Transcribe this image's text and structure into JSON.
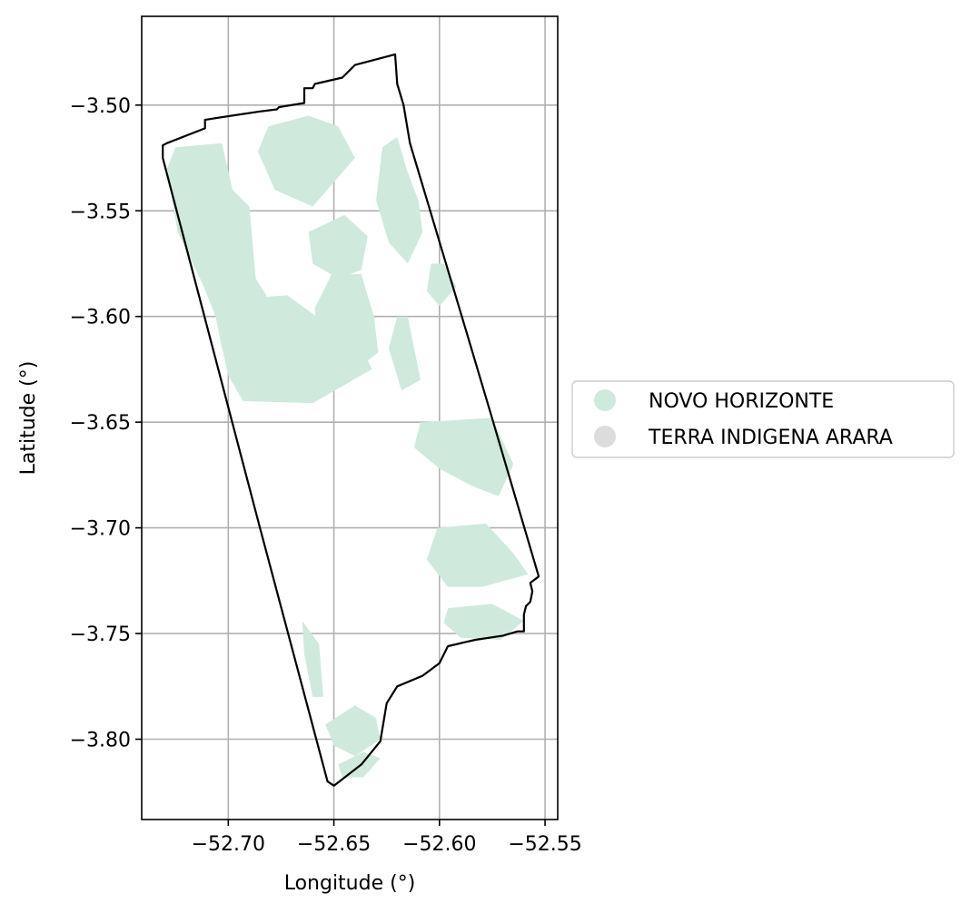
{
  "chart_data": {
    "type": "map",
    "xlabel": "Longitude (°)",
    "ylabel": "Latitude (°)",
    "xlim": [
      -52.741,
      -52.544
    ],
    "ylim": [
      -3.838,
      -3.458
    ],
    "xticks": [
      {
        "value": -52.7,
        "label": "−52.70"
      },
      {
        "value": -52.65,
        "label": "−52.65"
      },
      {
        "value": -52.6,
        "label": "−52.60"
      },
      {
        "value": -52.55,
        "label": "−52.55"
      }
    ],
    "yticks": [
      {
        "value": -3.5,
        "label": "−3.50"
      },
      {
        "value": -3.55,
        "label": "−3.55"
      },
      {
        "value": -3.6,
        "label": "−3.60"
      },
      {
        "value": -3.65,
        "label": "−3.65"
      },
      {
        "value": -3.7,
        "label": "−3.70"
      },
      {
        "value": -3.75,
        "label": "−3.75"
      },
      {
        "value": -3.8,
        "label": "−3.80"
      }
    ],
    "grid": true,
    "legend_position": "right",
    "legend": [
      {
        "label": "NOVO HORIZONTE",
        "color": "#cfeadc"
      },
      {
        "label": "TERRA INDIGENA ARARA",
        "color": "#dcdcdc"
      }
    ],
    "boundary": [
      [
        -52.621,
        -3.476
      ],
      [
        -52.64,
        -3.481
      ],
      [
        -52.646,
        -3.487
      ],
      [
        -52.659,
        -3.49
      ],
      [
        -52.66,
        -3.492
      ],
      [
        -52.664,
        -3.492
      ],
      [
        -52.664,
        -3.499
      ],
      [
        -52.676,
        -3.501
      ],
      [
        -52.677,
        -3.502
      ],
      [
        -52.685,
        -3.503
      ],
      [
        -52.705,
        -3.506
      ],
      [
        -52.711,
        -3.507
      ],
      [
        -52.711,
        -3.511
      ],
      [
        -52.729,
        -3.518
      ],
      [
        -52.731,
        -3.519
      ],
      [
        -52.731,
        -3.523
      ],
      [
        -52.731,
        -3.525
      ],
      [
        -52.685,
        -3.7
      ],
      [
        -52.661,
        -3.79
      ],
      [
        -52.653,
        -3.82
      ],
      [
        -52.65,
        -3.822
      ],
      [
        -52.637,
        -3.812
      ],
      [
        -52.628,
        -3.801
      ],
      [
        -52.625,
        -3.783
      ],
      [
        -52.62,
        -3.775
      ],
      [
        -52.608,
        -3.77
      ],
      [
        -52.6,
        -3.764
      ],
      [
        -52.596,
        -3.756
      ],
      [
        -52.583,
        -3.753
      ],
      [
        -52.57,
        -3.751
      ],
      [
        -52.563,
        -3.749
      ],
      [
        -52.56,
        -3.749
      ],
      [
        -52.56,
        -3.741
      ],
      [
        -52.559,
        -3.737
      ],
      [
        -52.557,
        -3.735
      ],
      [
        -52.556,
        -3.73
      ],
      [
        -52.557,
        -3.726
      ],
      [
        -52.553,
        -3.723
      ],
      [
        -52.576,
        -3.645
      ],
      [
        -52.587,
        -3.608
      ],
      [
        -52.605,
        -3.548
      ],
      [
        -52.614,
        -3.518
      ],
      [
        -52.617,
        -3.5
      ],
      [
        -52.62,
        -3.49
      ]
    ],
    "regions": [
      {
        "name": "NOVO HORIZONTE",
        "polygons": [
          [
            [
              -52.725,
              -3.52
            ],
            [
              -52.703,
              -3.518
            ],
            [
              -52.698,
              -3.54
            ],
            [
              -52.69,
              -3.548
            ],
            [
              -52.687,
              -3.582
            ],
            [
              -52.682,
              -3.59
            ],
            [
              -52.686,
              -3.605
            ],
            [
              -52.703,
              -3.615
            ],
            [
              -52.706,
              -3.6
            ],
            [
              -52.712,
              -3.585
            ],
            [
              -52.724,
              -3.56
            ],
            [
              -52.729,
              -3.53
            ]
          ],
          [
            [
              -52.701,
              -3.592
            ],
            [
              -52.672,
              -3.59
            ],
            [
              -52.661,
              -3.598
            ],
            [
              -52.651,
              -3.605
            ],
            [
              -52.638,
              -3.612
            ],
            [
              -52.632,
              -3.625
            ],
            [
              -52.66,
              -3.641
            ],
            [
              -52.693,
              -3.64
            ],
            [
              -52.7,
              -3.628
            ],
            [
              -52.704,
              -3.61
            ]
          ],
          [
            [
              -52.681,
              -3.51
            ],
            [
              -52.662,
              -3.505
            ],
            [
              -52.648,
              -3.51
            ],
            [
              -52.64,
              -3.525
            ],
            [
              -52.66,
              -3.548
            ],
            [
              -52.678,
              -3.54
            ],
            [
              -52.686,
              -3.522
            ]
          ],
          [
            [
              -52.662,
              -3.56
            ],
            [
              -52.645,
              -3.552
            ],
            [
              -52.634,
              -3.562
            ],
            [
              -52.637,
              -3.578
            ],
            [
              -52.648,
              -3.582
            ],
            [
              -52.66,
              -3.575
            ]
          ],
          [
            [
              -52.651,
              -3.58
            ],
            [
              -52.637,
              -3.58
            ],
            [
              -52.631,
              -3.6
            ],
            [
              -52.629,
              -3.617
            ],
            [
              -52.648,
              -3.632
            ],
            [
              -52.657,
              -3.62
            ],
            [
              -52.659,
              -3.596
            ]
          ],
          [
            [
              -52.615,
              -3.532
            ],
            [
              -52.62,
              -3.515
            ],
            [
              -52.627,
              -3.52
            ],
            [
              -52.63,
              -3.545
            ],
            [
              -52.624,
              -3.565
            ],
            [
              -52.615,
              -3.575
            ],
            [
              -52.608,
              -3.56
            ],
            [
              -52.61,
              -3.545
            ]
          ],
          [
            [
              -52.615,
              -3.6
            ],
            [
              -52.609,
              -3.63
            ],
            [
              -52.618,
              -3.635
            ],
            [
              -52.624,
              -3.615
            ],
            [
              -52.62,
              -3.6
            ]
          ],
          [
            [
              -52.604,
              -3.575
            ],
            [
              -52.598,
              -3.575
            ],
            [
              -52.592,
              -3.586
            ],
            [
              -52.6,
              -3.595
            ],
            [
              -52.606,
              -3.588
            ]
          ],
          [
            [
              -52.609,
              -3.65
            ],
            [
              -52.575,
              -3.648
            ],
            [
              -52.565,
              -3.67
            ],
            [
              -52.572,
              -3.685
            ],
            [
              -52.585,
              -3.68
            ],
            [
              -52.6,
              -3.672
            ],
            [
              -52.612,
              -3.662
            ]
          ],
          [
            [
              -52.601,
              -3.7
            ],
            [
              -52.578,
              -3.698
            ],
            [
              -52.565,
              -3.712
            ],
            [
              -52.558,
              -3.722
            ],
            [
              -52.58,
              -3.728
            ],
            [
              -52.596,
              -3.728
            ],
            [
              -52.606,
              -3.715
            ]
          ],
          [
            [
              -52.596,
              -3.738
            ],
            [
              -52.575,
              -3.736
            ],
            [
              -52.56,
              -3.744
            ],
            [
              -52.571,
              -3.753
            ],
            [
              -52.59,
              -3.752
            ],
            [
              -52.598,
              -3.745
            ]
          ],
          [
            [
              -52.665,
              -3.744
            ],
            [
              -52.657,
              -3.755
            ],
            [
              -52.655,
              -3.78
            ],
            [
              -52.66,
              -3.78
            ],
            [
              -52.664,
              -3.76
            ]
          ],
          [
            [
              -52.654,
              -3.793
            ],
            [
              -52.64,
              -3.784
            ],
            [
              -52.63,
              -3.79
            ],
            [
              -52.628,
              -3.8
            ],
            [
              -52.64,
              -3.808
            ],
            [
              -52.65,
              -3.803
            ]
          ],
          [
            [
              -52.648,
              -3.812
            ],
            [
              -52.636,
              -3.806
            ],
            [
              -52.628,
              -3.809
            ],
            [
              -52.636,
              -3.818
            ],
            [
              -52.646,
              -3.818
            ]
          ]
        ]
      },
      {
        "name": "TERRA INDIGENA ARARA",
        "polygons": []
      }
    ]
  }
}
